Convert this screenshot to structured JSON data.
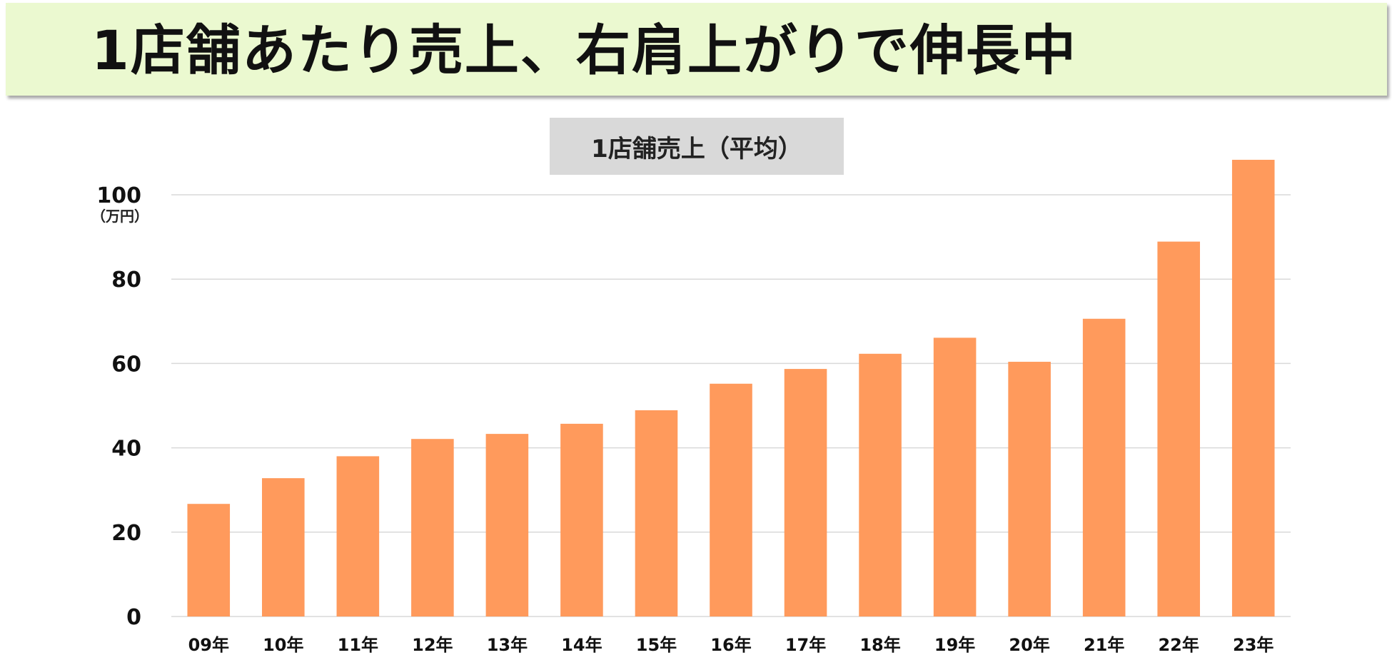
{
  "page": {
    "title": "1店舗あたり売上、右肩上がりで伸長中"
  },
  "chart_data": {
    "type": "bar",
    "title": "1店舗売上（平均）",
    "ylabel": "（万円）",
    "xlabel": "",
    "categories": [
      "09年",
      "10年",
      "11年",
      "12年",
      "13年",
      "14年",
      "15年",
      "16年",
      "17年",
      "18年",
      "19年",
      "20年",
      "21年",
      "22年",
      "23年"
    ],
    "values": [
      26.7,
      32.8,
      38.0,
      42.1,
      43.3,
      45.7,
      48.9,
      55.2,
      58.7,
      62.3,
      66.1,
      60.4,
      70.6,
      88.9,
      108.3
    ],
    "ylim": [
      0,
      100
    ],
    "yticks": [
      0,
      20,
      40,
      60,
      80,
      100
    ],
    "grid": true,
    "legend": "none",
    "bar_color": "#ff9a5c",
    "grid_color": "#d9d9d9"
  }
}
